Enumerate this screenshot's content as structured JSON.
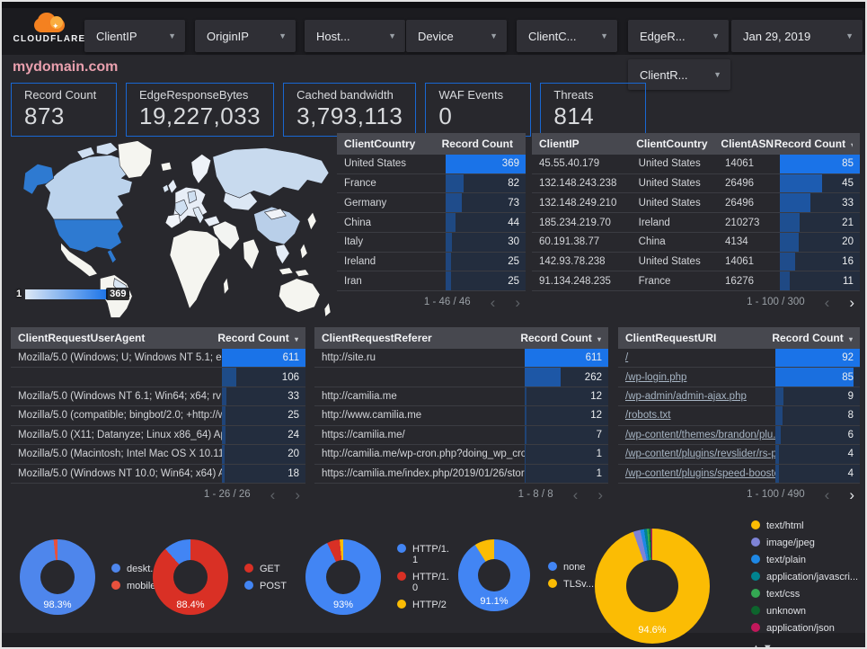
{
  "header": {
    "brand": "CLOUDFLARE",
    "filters": [
      "ClientIP",
      "OriginIP",
      "Host...",
      "Device",
      "ClientC...",
      "EdgeR..."
    ],
    "date_filter": "Jan 29, 2019",
    "filter_row2": "ClientR..."
  },
  "title": "mydomain.com",
  "scorecards": [
    {
      "label": "Record Count",
      "value": "873"
    },
    {
      "label": "EdgeResponseBytes",
      "value": "19,227,033"
    },
    {
      "label": "Cached bandwidth",
      "value": "3,793,113"
    },
    {
      "label": "WAF Events",
      "value": "0"
    },
    {
      "label": "Threats",
      "value": "814"
    }
  ],
  "map": {
    "legend_min": "1",
    "legend_max": "369"
  },
  "tables": {
    "client_country": {
      "columns": [
        "ClientCountry",
        "Record Count"
      ],
      "widths": [
        56,
        44
      ],
      "rows": [
        {
          "cells": [
            "United States"
          ],
          "value": 369
        },
        {
          "cells": [
            "France"
          ],
          "value": 82
        },
        {
          "cells": [
            "Germany"
          ],
          "value": 73
        },
        {
          "cells": [
            "China"
          ],
          "value": 44
        },
        {
          "cells": [
            "Italy"
          ],
          "value": 30
        },
        {
          "cells": [
            "Ireland"
          ],
          "value": 25
        },
        {
          "cells": [
            "Iran"
          ],
          "value": 25
        }
      ],
      "max": 369,
      "pagination": "1 - 46 / 46",
      "prev_enabled": false,
      "next_enabled": false,
      "links": false
    },
    "client_ip": {
      "columns": [
        "ClientIP",
        "ClientCountry",
        "ClientASN",
        "Record Count"
      ],
      "widths": [
        31,
        27,
        17,
        25
      ],
      "rows": [
        {
          "cells": [
            "45.55.40.179",
            "United States",
            "14061"
          ],
          "value": 85
        },
        {
          "cells": [
            "132.148.243.238",
            "United States",
            "26496"
          ],
          "value": 45
        },
        {
          "cells": [
            "132.148.249.210",
            "United States",
            "26496"
          ],
          "value": 33
        },
        {
          "cells": [
            "185.234.219.70",
            "Ireland",
            "210273"
          ],
          "value": 21
        },
        {
          "cells": [
            "60.191.38.77",
            "China",
            "4134"
          ],
          "value": 20
        },
        {
          "cells": [
            "142.93.78.238",
            "United States",
            "14061"
          ],
          "value": 16
        },
        {
          "cells": [
            "91.134.248.235",
            "France",
            "16276"
          ],
          "value": 11
        }
      ],
      "max": 85,
      "pagination": "1 - 100 / 300",
      "prev_enabled": false,
      "next_enabled": true,
      "links": false
    },
    "user_agent": {
      "columns": [
        "ClientRequestUserAgent",
        "Record Count"
      ],
      "widths": [
        71,
        29
      ],
      "rows": [
        {
          "cells": [
            "Mozilla/5.0 (Windows; U; Windows NT 5.1; en-U..."
          ],
          "value": 611
        },
        {
          "cells": [
            ""
          ],
          "value": 106
        },
        {
          "cells": [
            "Mozilla/5.0 (Windows NT 6.1; Win64; x64; rv:64..."
          ],
          "value": 33
        },
        {
          "cells": [
            "Mozilla/5.0 (compatible; bingbot/2.0; +http://w..."
          ],
          "value": 25
        },
        {
          "cells": [
            "Mozilla/5.0 (X11; Datanyze; Linux x86_64) Appl..."
          ],
          "value": 24
        },
        {
          "cells": [
            "Mozilla/5.0 (Macintosh; Intel Mac OS X 10.11; r..."
          ],
          "value": 20
        },
        {
          "cells": [
            "Mozilla/5.0 (Windows NT 10.0; Win64; x64) App..."
          ],
          "value": 18
        }
      ],
      "max": 611,
      "pagination": "1 - 26 / 26",
      "prev_enabled": false,
      "next_enabled": false,
      "links": false
    },
    "referer": {
      "columns": [
        "ClientRequestReferer",
        "Record Count"
      ],
      "widths": [
        71,
        29
      ],
      "rows": [
        {
          "cells": [
            "http://site.ru"
          ],
          "value": 611
        },
        {
          "cells": [
            ""
          ],
          "value": 262
        },
        {
          "cells": [
            "http://camilia.me"
          ],
          "value": 12
        },
        {
          "cells": [
            "http://www.camilia.me"
          ],
          "value": 12
        },
        {
          "cells": [
            "https://camilia.me/"
          ],
          "value": 7
        },
        {
          "cells": [
            "http://camilia.me/wp-cron.php?doing_wp_cron..."
          ],
          "value": 1
        },
        {
          "cells": [
            "https://camilia.me/index.php/2019/01/26/stor..."
          ],
          "value": 1
        }
      ],
      "max": 611,
      "pagination": "1 - 8 / 8",
      "prev_enabled": false,
      "next_enabled": false,
      "links": false
    },
    "request_uri": {
      "columns": [
        "ClientRequestURI",
        "Record Count"
      ],
      "widths": [
        64,
        36
      ],
      "rows": [
        {
          "cells": [
            "/"
          ],
          "value": 92
        },
        {
          "cells": [
            "/wp-login.php"
          ],
          "value": 85
        },
        {
          "cells": [
            "/wp-admin/admin-ajax.php"
          ],
          "value": 9
        },
        {
          "cells": [
            "/robots.txt"
          ],
          "value": 8
        },
        {
          "cells": [
            "/wp-content/themes/brandon/plu..."
          ],
          "value": 6
        },
        {
          "cells": [
            "/wp-content/plugins/revslider/rs-p..."
          ],
          "value": 4
        },
        {
          "cells": [
            "/wp-content/plugins/speed-booste..."
          ],
          "value": 4
        }
      ],
      "max": 92,
      "pagination": "1 - 100 / 490",
      "prev_enabled": false,
      "next_enabled": true,
      "links": true
    }
  },
  "chart_data": [
    {
      "type": "pie",
      "name": "device-type",
      "center_label": "98.3%",
      "legend_position": "right",
      "series": [
        {
          "label": "deskt...",
          "value": 98.3,
          "color": "#4e86ec"
        },
        {
          "label": "mobile",
          "value": 1.7,
          "color": "#e8513d"
        }
      ]
    },
    {
      "type": "pie",
      "name": "request-method",
      "center_label": "88.4%",
      "legend_position": "right",
      "series": [
        {
          "label": "GET",
          "value": 88.4,
          "color": "#d93025"
        },
        {
          "label": "POST",
          "value": 11.6,
          "color": "#4285f4"
        }
      ]
    },
    {
      "type": "pie",
      "name": "http-protocol",
      "center_label": "93%",
      "legend_position": "right",
      "legend_wrap": true,
      "series": [
        {
          "label": "HTTP/1.1",
          "value": 93,
          "color": "#4285f4"
        },
        {
          "label": "HTTP/1.0",
          "value": 5.5,
          "color": "#d93025"
        },
        {
          "label": "HTTP/2",
          "value": 1.5,
          "color": "#fbbc04"
        }
      ]
    },
    {
      "type": "pie",
      "name": "tls-version",
      "center_label": "91.1%",
      "legend_position": "right",
      "series": [
        {
          "label": "none",
          "value": 91.1,
          "color": "#4285f4"
        },
        {
          "label": "TLSv...",
          "value": 8.9,
          "color": "#fbbc04"
        }
      ]
    },
    {
      "type": "pie",
      "name": "content-type",
      "center_label": "94.6%",
      "legend_position": "right",
      "sort_arrows": true,
      "series": [
        {
          "label": "text/html",
          "value": 94.6,
          "color": "#fbbc04"
        },
        {
          "label": "image/jpeg",
          "value": 2.0,
          "color": "#7e83d6"
        },
        {
          "label": "text/plain",
          "value": 1.1,
          "color": "#1e88e5"
        },
        {
          "label": "application/javascri...",
          "value": 0.8,
          "color": "#00838f"
        },
        {
          "label": "text/css",
          "value": 0.6,
          "color": "#34a853"
        },
        {
          "label": "unknown",
          "value": 0.5,
          "color": "#0d652d"
        },
        {
          "label": "application/json",
          "value": 0.4,
          "color": "#c2185b"
        }
      ]
    }
  ],
  "ui": {
    "sort_caret": "▾",
    "prev_arrow": "‹",
    "next_arrow": "›",
    "legend_sort": "▲▼",
    "spark": "✦"
  }
}
